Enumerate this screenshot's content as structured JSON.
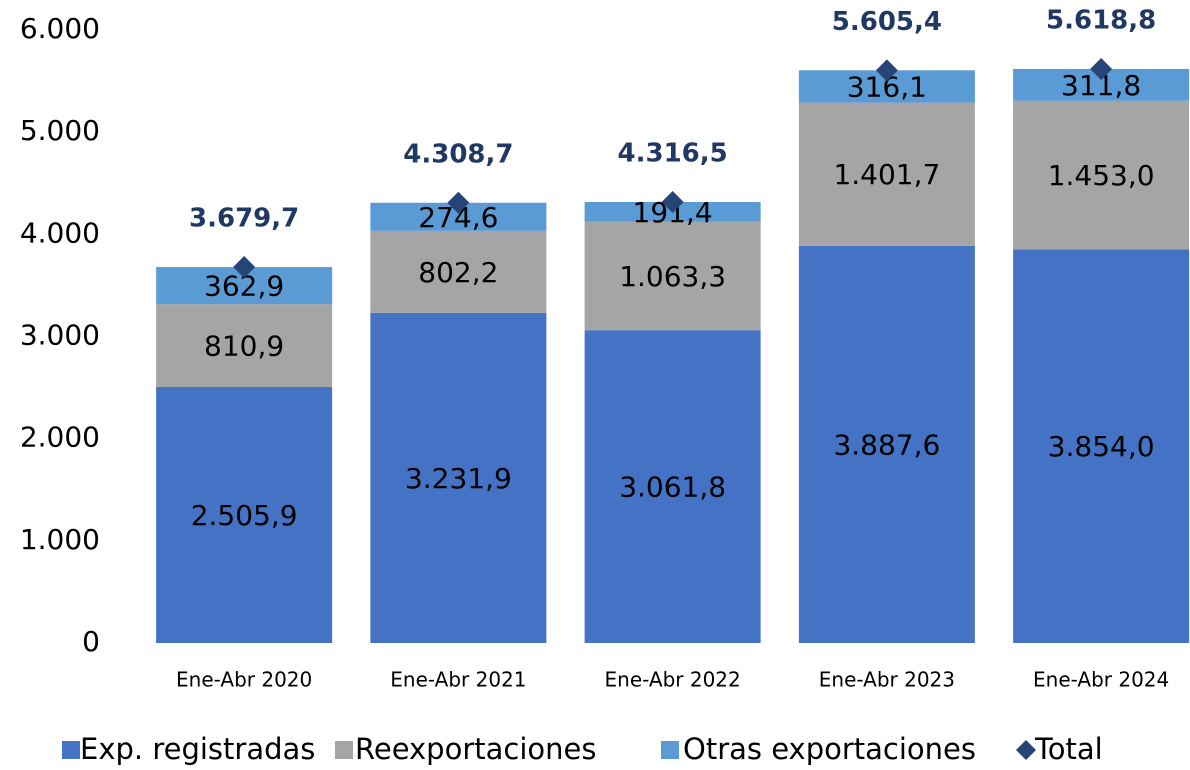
{
  "chart_data": {
    "type": "stacked_bar",
    "categories": [
      "Ene-Abr 2020",
      "Ene-Abr 2021",
      "Ene-Abr 2022",
      "Ene-Abr 2023",
      "Ene-Abr 2024"
    ],
    "series": [
      {
        "name": "Exp. registradas",
        "color": "#4472c4",
        "values": [
          2505.9,
          3231.9,
          3061.8,
          3887.6,
          3854.0
        ],
        "value_labels": [
          "2.505,9",
          "3.231,9",
          "3.061,8",
          "3.887,6",
          "3.854,0"
        ]
      },
      {
        "name": "Reexportaciones",
        "color": "#a5a5a5",
        "values": [
          810.9,
          802.2,
          1063.3,
          1401.7,
          1453.0
        ],
        "value_labels": [
          "810,9",
          "802,2",
          "1.063,3",
          "1.401,7",
          "1.453,0"
        ]
      },
      {
        "name": "Otras exportaciones",
        "color": "#5b9bd5",
        "values": [
          362.9,
          274.6,
          191.4,
          316.1,
          311.8
        ],
        "value_labels": [
          "362,9",
          "274,6",
          "191,4",
          "316,1",
          "311,8"
        ]
      },
      {
        "name": "Total",
        "color": "#264478",
        "marker": "diamond",
        "values": [
          3679.7,
          4308.7,
          4316.5,
          5605.4,
          5618.8
        ],
        "value_labels": [
          "3.679,7",
          "4.308,7",
          "4.316,5",
          "5.605,4",
          "5.618,8"
        ]
      }
    ],
    "ylim": [
      0,
      6000
    ],
    "yticks": [
      0,
      {
        "value": 1000,
        "label": "1.000"
      },
      {
        "value": 2000,
        "label": "2.000"
      },
      {
        "value": 3000,
        "label": "3.000"
      },
      {
        "value": 4000,
        "label": "4.000"
      },
      {
        "value": 5000,
        "label": "5.000"
      },
      {
        "value": 6000,
        "label": "6.000"
      }
    ],
    "legend": "bottom"
  }
}
